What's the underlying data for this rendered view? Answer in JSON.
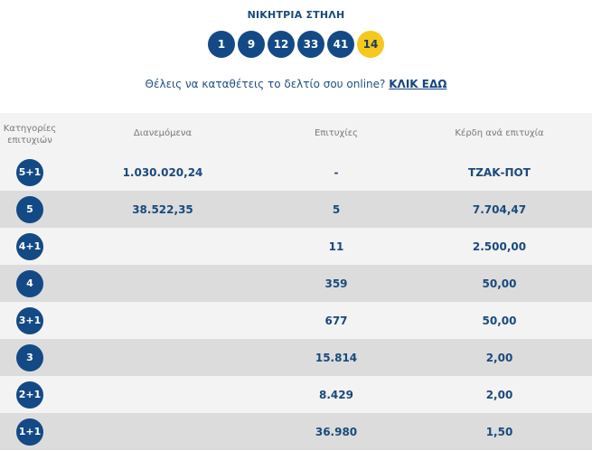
{
  "title": "ΝΙΚΗΤΡΙΑ ΣΤΗΛΗ",
  "numbers": [
    "1",
    "9",
    "12",
    "33",
    "41"
  ],
  "bonus": "14",
  "online": {
    "text": "Θέλεις να καταθέτεις το δελτίο σου online?",
    "link": "ΚΛΙΚ ΕΔΩ"
  },
  "headers": {
    "category_line1": "Κατηγορίες",
    "category_line2": "επιτυχιών",
    "distributed": "Διανεμόμενα",
    "winners": "Επιτυχίες",
    "prize": "Κέρδη ανά επιτυχία"
  },
  "rows": [
    {
      "category": "5+1",
      "distributed": "1.030.020,24",
      "winners": "-",
      "prize": "ΤΖΑΚ-ΠΟΤ"
    },
    {
      "category": "5",
      "distributed": "38.522,35",
      "winners": "5",
      "prize": "7.704,47"
    },
    {
      "category": "4+1",
      "distributed": "",
      "winners": "11",
      "prize": "2.500,00"
    },
    {
      "category": "4",
      "distributed": "",
      "winners": "359",
      "prize": "50,00"
    },
    {
      "category": "3+1",
      "distributed": "",
      "winners": "677",
      "prize": "50,00"
    },
    {
      "category": "3",
      "distributed": "",
      "winners": "15.814",
      "prize": "2,00"
    },
    {
      "category": "2+1",
      "distributed": "",
      "winners": "8.429",
      "prize": "2,00"
    },
    {
      "category": "1+1",
      "distributed": "",
      "winners": "36.980",
      "prize": "1,50"
    }
  ],
  "colors": {
    "navy": "#134a85",
    "bonus": "#f5c81b",
    "row_light": "#f3f3f3",
    "row_dark": "#dcdcdc"
  }
}
